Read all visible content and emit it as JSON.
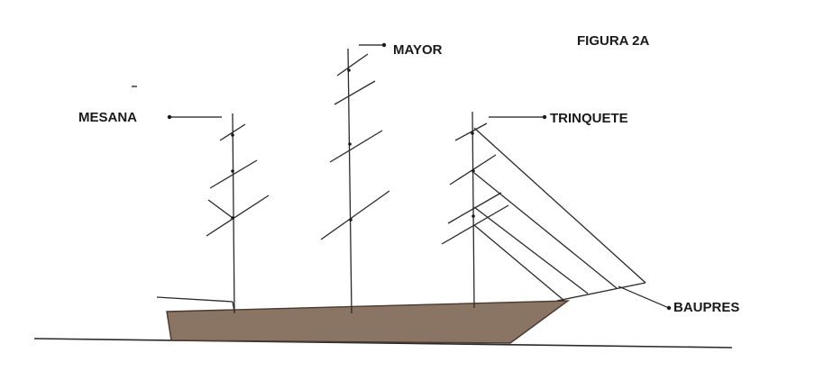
{
  "figure": {
    "title": "FIGURA 2A",
    "labels": {
      "mesana": "MESANA",
      "mayor": "MAYOR",
      "trinquete": "TRINQUETE",
      "baupres": "BAUPRES"
    },
    "colors": {
      "hull": "#8a7463",
      "hull_edge": "#4a3a30",
      "line": "#2a2a2a",
      "text": "#1a1a1a",
      "background": "#ffffff"
    }
  }
}
